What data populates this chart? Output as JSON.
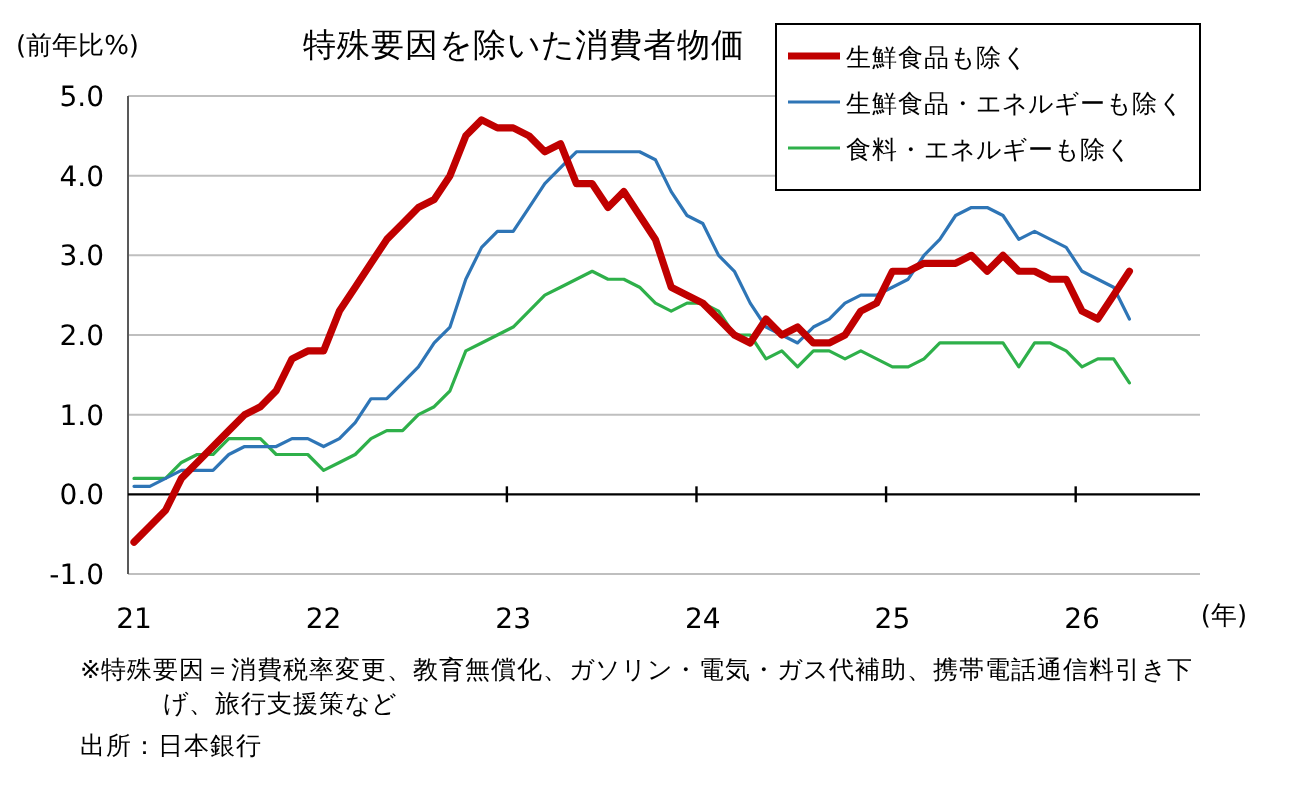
{
  "chart_data": {
    "type": "line",
    "title": "特殊要因を除いた消費者物価",
    "ylabel": "(前年比%)",
    "xlabel": "(年)",
    "categories": [
      "21",
      null,
      null,
      null,
      null,
      null,
      null,
      null,
      null,
      null,
      null,
      null,
      "22",
      null,
      null,
      null,
      null,
      null,
      null,
      null,
      null,
      null,
      null,
      null,
      "23",
      null,
      null,
      null,
      null,
      null,
      null,
      null,
      null,
      null,
      null,
      null,
      "24",
      null,
      null,
      null,
      null,
      null,
      null,
      null,
      null,
      null,
      null,
      null,
      "25",
      null,
      null,
      null,
      null,
      null,
      null,
      null,
      null,
      null,
      null,
      null,
      "26",
      null,
      null,
      null
    ],
    "series": [
      {
        "name": "生鮮食品も除く",
        "color": "#c00000",
        "values": [
          -0.6,
          -0.4,
          -0.2,
          0.2,
          0.4,
          0.6,
          0.8,
          1.0,
          1.1,
          1.3,
          1.7,
          1.8,
          1.8,
          2.3,
          2.6,
          2.9,
          3.2,
          3.4,
          3.6,
          3.7,
          4.0,
          4.5,
          4.7,
          4.6,
          4.6,
          4.5,
          4.3,
          4.4,
          3.9,
          3.9,
          3.6,
          3.8,
          3.5,
          3.2,
          2.6,
          2.5,
          2.4,
          2.2,
          2.0,
          1.9,
          2.2,
          2.0,
          2.1,
          1.9,
          1.9,
          2.0,
          2.3,
          2.4,
          2.8,
          2.8,
          2.9,
          2.9,
          2.9,
          3.0,
          2.8,
          3.0,
          2.8,
          2.8,
          2.7,
          2.7,
          2.3,
          2.2,
          2.5,
          2.8
        ]
      },
      {
        "name": "生鮮食品・エネルギーも除く",
        "color": "#2e75b6",
        "values": [
          0.1,
          0.1,
          0.2,
          0.3,
          0.3,
          0.3,
          0.5,
          0.6,
          0.6,
          0.6,
          0.7,
          0.7,
          0.6,
          0.7,
          0.9,
          1.2,
          1.2,
          1.4,
          1.6,
          1.9,
          2.1,
          2.7,
          3.1,
          3.3,
          3.3,
          3.6,
          3.9,
          4.1,
          4.3,
          4.3,
          4.3,
          4.3,
          4.3,
          4.2,
          3.8,
          3.5,
          3.4,
          3.0,
          2.8,
          2.4,
          2.1,
          2.0,
          1.9,
          2.1,
          2.2,
          2.4,
          2.5,
          2.5,
          2.6,
          2.7,
          3.0,
          3.2,
          3.5,
          3.6,
          3.6,
          3.5,
          3.2,
          3.3,
          3.2,
          3.1,
          2.8,
          2.7,
          2.6,
          2.2
        ]
      },
      {
        "name": "食料・エネルギーも除く",
        "color": "#2eb04a",
        "values": [
          0.2,
          0.2,
          0.2,
          0.4,
          0.5,
          0.5,
          0.7,
          0.7,
          0.7,
          0.5,
          0.5,
          0.5,
          0.3,
          0.4,
          0.5,
          0.7,
          0.8,
          0.8,
          1.0,
          1.1,
          1.3,
          1.8,
          1.9,
          2.0,
          2.1,
          2.3,
          2.5,
          2.6,
          2.7,
          2.8,
          2.7,
          2.7,
          2.6,
          2.4,
          2.3,
          2.4,
          2.4,
          2.3,
          2.0,
          2.0,
          1.7,
          1.8,
          1.6,
          1.8,
          1.8,
          1.7,
          1.8,
          1.7,
          1.6,
          1.6,
          1.7,
          1.9,
          1.9,
          1.9,
          1.9,
          1.9,
          1.6,
          1.9,
          1.9,
          1.8,
          1.6,
          1.7,
          1.7,
          1.4
        ]
      }
    ],
    "ylim": [
      -1,
      5
    ],
    "yticks": [
      {
        "value": -1,
        "label": "-1.0"
      },
      {
        "value": 0,
        "label": "0.0"
      },
      {
        "value": 1,
        "label": "1.0"
      },
      {
        "value": 2,
        "label": "2.0"
      },
      {
        "value": 3,
        "label": "3.0"
      },
      {
        "value": 4,
        "label": "4.0"
      },
      {
        "value": 5,
        "label": "5.0"
      }
    ],
    "grid": "y",
    "legend": "top right",
    "annotations": [
      "※特殊要因＝消費税率変更、教育無償化、ガソリン・電気・ガス代補助、携帯電話通信料引き下げ、旅行支援策など",
      "出所：日本銀行"
    ]
  }
}
